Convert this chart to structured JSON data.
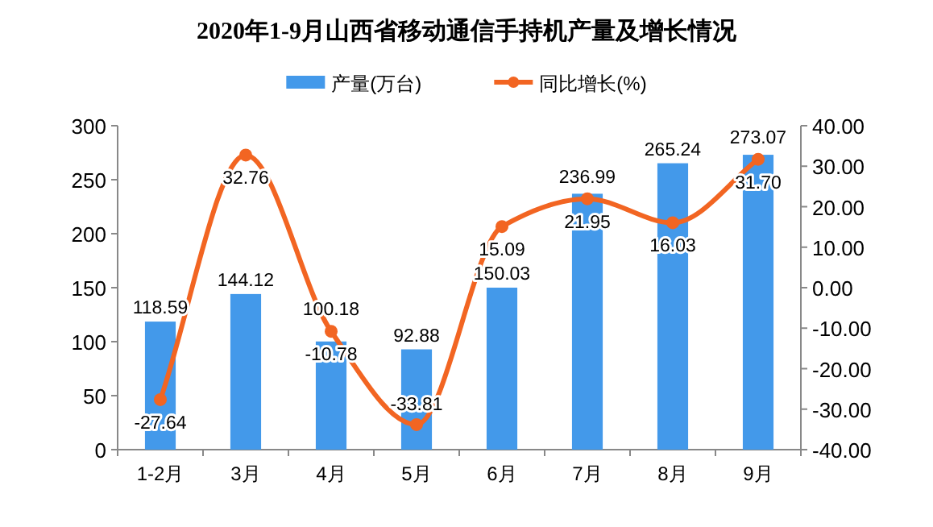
{
  "chart_data": {
    "type": "bar",
    "title": "2020年1-9月山西省移动通信手持机产量及增长情况",
    "categories": [
      "1-2月",
      "3月",
      "4月",
      "5月",
      "6月",
      "7月",
      "8月",
      "9月"
    ],
    "series": [
      {
        "name": "产量(万台)",
        "color": "#4399ea",
        "values": [
          118.59,
          144.12,
          100.18,
          92.88,
          150.03,
          236.99,
          265.24,
          273.07
        ],
        "value_labels": [
          "118.59",
          "144.12",
          "100.18",
          "92.88",
          "150.03",
          "236.99",
          "265.24",
          "273.07"
        ]
      },
      {
        "name": "同比增长(%)",
        "type": "line",
        "axis": "y2",
        "color": "#f26522",
        "marker": "circle",
        "values": [
          -27.64,
          32.76,
          -10.78,
          -33.81,
          15.09,
          21.95,
          16.03,
          31.7
        ],
        "value_labels": [
          "-27.64",
          "32.76",
          "-10.78",
          "-33.81",
          "15.09",
          "21.95",
          "16.03",
          "31.70"
        ]
      }
    ],
    "ylim": [
      0,
      300
    ],
    "yticks": [
      0,
      50,
      100,
      150,
      200,
      250,
      300
    ],
    "y2lim": [
      -40,
      40
    ],
    "y2ticks": [
      {
        "value": -40,
        "label": "-40.00"
      },
      {
        "value": -30,
        "label": "-30.00"
      },
      {
        "value": -20,
        "label": "-20.00"
      },
      {
        "value": -10,
        "label": "-10.00"
      },
      {
        "value": 0,
        "label": "0.00"
      },
      {
        "value": 10,
        "label": "10.00"
      },
      {
        "value": 20,
        "label": "20.00"
      },
      {
        "value": 30,
        "label": "30.00"
      },
      {
        "value": 40,
        "label": "40.00"
      }
    ],
    "legend": "top",
    "grid": false
  }
}
